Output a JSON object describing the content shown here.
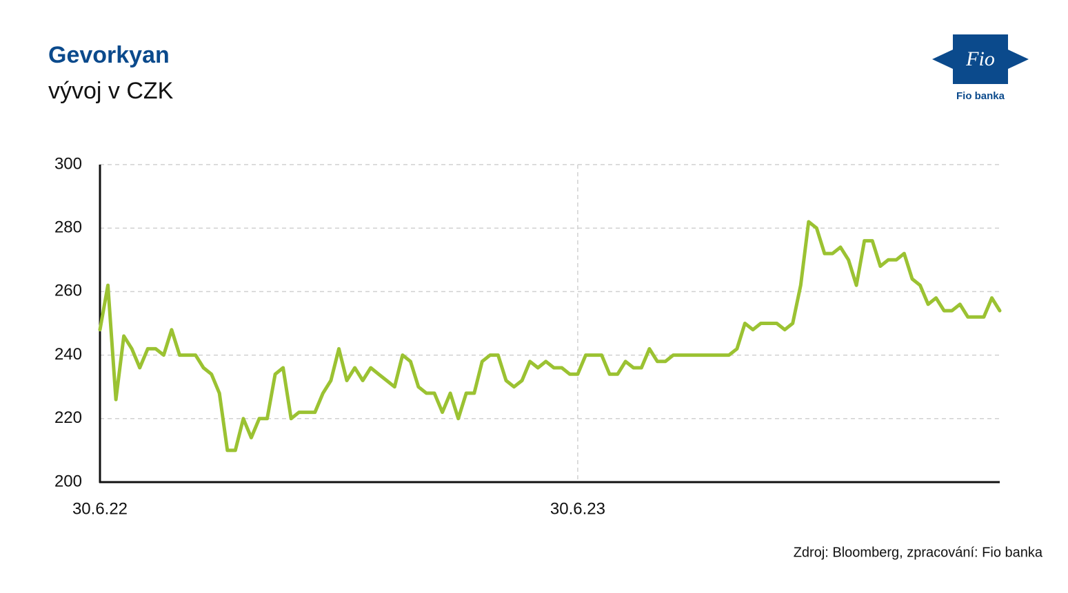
{
  "chart_data": {
    "type": "line",
    "title": "Gevorkyan",
    "subtitle": "vývoj v CZK",
    "source": "Zdroj: Bloomberg, zpracování: Fio banka",
    "logo": {
      "mark": "Fio",
      "caption": "Fio banka"
    },
    "categories": [
      "30.6.22",
      null,
      null,
      null,
      null,
      null,
      null,
      null,
      null,
      null,
      null,
      null,
      null,
      null,
      null,
      null,
      null,
      null,
      null,
      null,
      null,
      null,
      null,
      null,
      null,
      null,
      null,
      null,
      null,
      null,
      null,
      null,
      null,
      null,
      null,
      null,
      null,
      null,
      null,
      null,
      null,
      null,
      null,
      null,
      null,
      null,
      null,
      null,
      null,
      null,
      null,
      null,
      null,
      null,
      null,
      null,
      null,
      null,
      null,
      null,
      "30.6.23",
      null,
      null,
      null,
      null,
      null,
      null,
      null,
      null,
      null,
      null,
      null,
      null,
      null,
      null,
      null,
      null,
      null,
      null,
      null,
      null,
      null,
      null,
      null,
      null,
      null,
      null,
      null,
      null,
      null,
      null,
      null,
      null,
      null,
      null,
      null,
      null,
      null,
      null,
      null,
      null,
      null,
      null,
      null,
      null,
      null,
      null,
      null,
      null,
      null,
      null,
      null,
      null,
      null
    ],
    "values": [
      248,
      262,
      226,
      246,
      242,
      236,
      242,
      242,
      240,
      248,
      240,
      240,
      240,
      236,
      234,
      228,
      210,
      210,
      220,
      214,
      220,
      220,
      234,
      236,
      220,
      222,
      222,
      222,
      228,
      232,
      242,
      232,
      236,
      232,
      236,
      234,
      232,
      230,
      240,
      238,
      230,
      228,
      228,
      222,
      228,
      220,
      228,
      228,
      238,
      240,
      240,
      232,
      230,
      232,
      238,
      236,
      238,
      236,
      236,
      234,
      234,
      240,
      240,
      240,
      234,
      234,
      238,
      236,
      236,
      242,
      238,
      238,
      240,
      240,
      240,
      240,
      240,
      240,
      240,
      240,
      242,
      250,
      248,
      250,
      250,
      250,
      248,
      250,
      262,
      282,
      280,
      272,
      272,
      274,
      270,
      262,
      276,
      276,
      268,
      270,
      270,
      272,
      264,
      262,
      256,
      258,
      254,
      254,
      256,
      252,
      252,
      252,
      258,
      254
    ],
    "color": "#9bc232",
    "ylim": [
      200,
      300
    ],
    "yticks": [
      200,
      220,
      240,
      260,
      280,
      300
    ],
    "grid": true
  }
}
